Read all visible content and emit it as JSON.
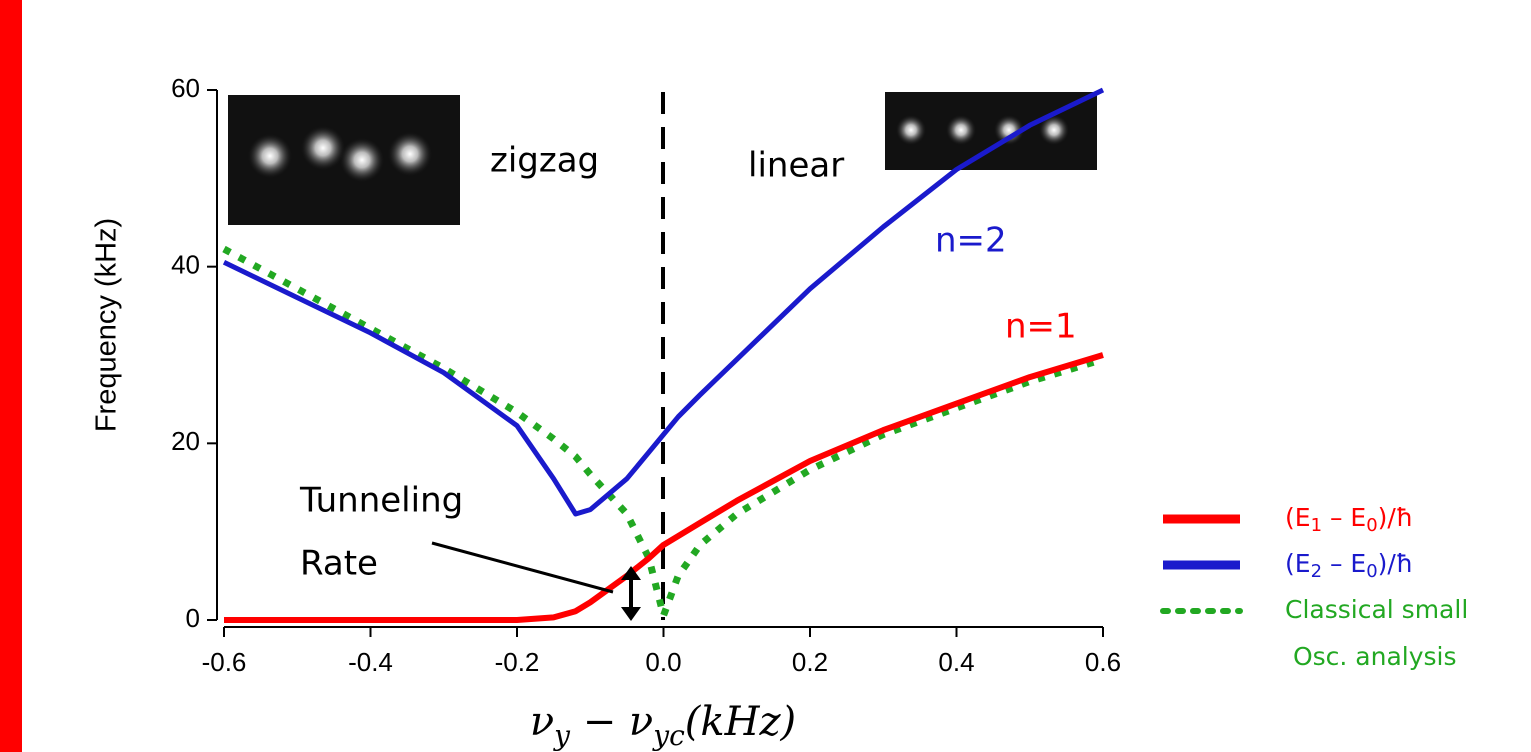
{
  "chart_data": {
    "type": "line",
    "y_label": "Frequency (kHz)",
    "x_label_parts": [
      "ν",
      "y",
      " − ν",
      "yc",
      "(kHz)"
    ],
    "x": [
      -0.6,
      -0.5,
      -0.4,
      -0.3,
      -0.2,
      -0.15,
      -0.12,
      -0.1,
      -0.05,
      -0.02,
      0,
      0.02,
      0.05,
      0.1,
      0.2,
      0.3,
      0.4,
      0.5,
      0.6
    ],
    "series": [
      {
        "name": "(E1 – E0)/ħ",
        "color": "#ff0000",
        "values": [
          0,
          0,
          0,
          0,
          0,
          0.3,
          1,
          2,
          5,
          7,
          8.5,
          9.5,
          11,
          13.5,
          18,
          21.5,
          24.5,
          27.5,
          30
        ]
      },
      {
        "name": "(E2 – E0)/ħ",
        "color": "#1a1acc",
        "values": [
          40.5,
          36.5,
          32.5,
          28,
          22,
          16,
          12,
          12.5,
          16,
          19,
          21,
          23,
          25.5,
          29.5,
          37.5,
          44.5,
          51,
          56,
          60
        ]
      },
      {
        "name": "Classical small Osc. analysis",
        "color": "#22a822",
        "values": [
          42,
          37.5,
          33,
          28.5,
          23.5,
          20.5,
          18.5,
          16.5,
          12,
          7,
          0.5,
          5,
          8.5,
          12,
          17,
          21,
          24,
          27,
          29.5
        ]
      }
    ],
    "xlim": [
      -0.6,
      0.6
    ],
    "xticks": [
      -0.6,
      -0.4,
      -0.2,
      {
        "value": 0,
        "label": "0.0"
      },
      0.2,
      0.4,
      0.6
    ],
    "ylim": [
      0,
      60
    ],
    "yticks": [
      0,
      20,
      40,
      60
    ],
    "annotations": [
      "zigzag",
      "linear",
      "n=2",
      "n=1",
      "Tunneling",
      "Rate"
    ]
  }
}
